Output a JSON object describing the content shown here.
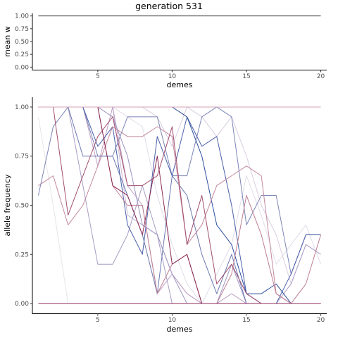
{
  "title": "generation 531",
  "chart_data": [
    {
      "type": "line",
      "xlabel": "demes",
      "ylabel": "mean w",
      "xlim": [
        0.6,
        20.4
      ],
      "ylim": [
        -0.05,
        1.05
      ],
      "xticks": [
        5,
        10,
        15,
        20
      ],
      "xtick_labels": [
        "5",
        "10",
        "15",
        "20"
      ],
      "yticks": [
        0,
        0.25,
        0.5,
        0.75,
        1
      ],
      "ytick_labels": [
        "0.00",
        "0.25",
        "0.50",
        "0.75",
        "1.00"
      ],
      "grid": false,
      "series": [
        {
          "color": "#333333",
          "x": [
            1,
            2,
            3,
            4,
            5,
            6,
            7,
            8,
            9,
            10,
            11,
            12,
            13,
            14,
            15,
            16,
            17,
            18,
            19,
            20
          ],
          "values": [
            1,
            1,
            1,
            1,
            1,
            1,
            1,
            1,
            1,
            1,
            1,
            1,
            1,
            1,
            1,
            1,
            1,
            1,
            1,
            1
          ]
        }
      ]
    },
    {
      "type": "line",
      "xlabel": "demes",
      "ylabel": "allele frequency",
      "xlim": [
        0.6,
        20.4
      ],
      "ylim": [
        -0.05,
        1.05
      ],
      "xticks": [
        5,
        10,
        15,
        20
      ],
      "xtick_labels": [
        "5",
        "10",
        "15",
        "20"
      ],
      "yticks": [
        0,
        0.25,
        0.5,
        0.75,
        1
      ],
      "ytick_labels": [
        "0.00",
        "0.25",
        "0.50",
        "0.75",
        "1.00"
      ],
      "grid": false,
      "series": [
        {
          "color": "#e6e6e6",
          "x": [
            1,
            2,
            3,
            4,
            5,
            6,
            7,
            8,
            9,
            10,
            11,
            12,
            13,
            14,
            15,
            16,
            17,
            18,
            19,
            20
          ],
          "values": [
            0.95,
            0.5,
            0,
            0,
            0,
            0,
            0,
            0,
            0,
            0,
            0,
            0,
            0,
            0,
            0,
            0,
            0,
            0,
            0,
            0
          ]
        },
        {
          "color": "#e0dce8",
          "x": [
            1,
            2,
            3,
            4,
            5,
            6,
            7,
            8,
            9,
            10,
            11,
            12,
            13,
            14,
            15,
            16,
            17,
            18,
            19,
            20
          ],
          "values": [
            1,
            1,
            1,
            1,
            1,
            1,
            0.95,
            0.9,
            0.55,
            0.3,
            0.1,
            0,
            0.15,
            0.3,
            0.65,
            0.45,
            0.2,
            0.3,
            0.4,
            0.2
          ]
        },
        {
          "color": "#d9cde0",
          "x": [
            1,
            2,
            3,
            4,
            5,
            6,
            7,
            8,
            9,
            10,
            11,
            12,
            13,
            14,
            15,
            16,
            17,
            18,
            19,
            20
          ],
          "values": [
            1,
            1,
            1,
            1,
            1,
            1,
            1,
            1,
            0.95,
            0.8,
            1,
            0.95,
            0.85,
            0.95,
            0.75,
            0.5,
            0.35,
            0.1,
            0.3,
            0.25
          ]
        },
        {
          "color": "#c8b8d3",
          "x": [
            1,
            2,
            3,
            4,
            5,
            6,
            7,
            8,
            9,
            10,
            11,
            12,
            13,
            14,
            15,
            16,
            17,
            18,
            19,
            20
          ],
          "values": [
            1,
            1,
            1,
            1,
            1,
            1,
            0.45,
            0.4,
            0.35,
            0.15,
            0.05,
            0,
            0,
            0,
            0,
            0,
            0,
            0,
            0,
            0
          ]
        },
        {
          "color": "#bea0c4",
          "x": [
            1,
            2,
            3,
            4,
            5,
            6,
            7,
            8,
            9,
            10,
            11,
            12,
            13,
            14,
            15,
            16,
            17,
            18,
            19,
            20
          ],
          "values": [
            1,
            1,
            1,
            1,
            0.7,
            1,
            0.6,
            0.5,
            0.05,
            0.15,
            0.05,
            0,
            0,
            0.05,
            0,
            0,
            0,
            0,
            0,
            0
          ]
        },
        {
          "color": "#a89cc4",
          "x": [
            1,
            2,
            3,
            4,
            5,
            6,
            7,
            8,
            9,
            10,
            11,
            12,
            13,
            14,
            15,
            16,
            17,
            18,
            19,
            20
          ],
          "values": [
            1,
            1,
            1,
            0.6,
            0.2,
            0.2,
            0.35,
            0.6,
            0.35,
            0,
            0,
            0,
            0,
            0,
            0,
            0,
            0,
            0.1,
            0.3,
            0.25
          ]
        },
        {
          "color": "#9c94c0",
          "x": [
            1,
            2,
            3,
            4,
            5,
            6,
            7,
            8,
            9,
            10,
            11,
            12,
            13,
            14,
            15,
            16,
            17,
            18,
            19,
            20
          ],
          "values": [
            1,
            1,
            1,
            1,
            1,
            0.95,
            0.75,
            0.4,
            0.35,
            0.15,
            0,
            0,
            0,
            0.2,
            0,
            0,
            0,
            0,
            0,
            0
          ]
        },
        {
          "color": "#7b85b5",
          "x": [
            1,
            2,
            3,
            4,
            5,
            6,
            7,
            8,
            9,
            10,
            11,
            12,
            13,
            14,
            15,
            16,
            17,
            18,
            19,
            20
          ],
          "values": [
            0.55,
            0.9,
            1,
            1,
            0.75,
            0.75,
            0.95,
            0.95,
            0.95,
            0.65,
            0.65,
            0.95,
            1,
            0.95,
            0.4,
            0.55,
            0.55,
            0.15,
            0.35,
            0.35
          ]
        },
        {
          "color": "#6b78b0",
          "x": [
            1,
            2,
            3,
            4,
            5,
            6,
            7,
            8,
            9,
            10,
            11,
            12,
            13,
            14,
            15,
            16,
            17,
            18,
            19,
            20
          ],
          "values": [
            1,
            1,
            1,
            0.75,
            0.75,
            0.75,
            0.55,
            0.35,
            0.05,
            0.65,
            0.55,
            0.25,
            0.05,
            0.25,
            0,
            0,
            0,
            0,
            0,
            0
          ]
        },
        {
          "color": "#4a5fa8",
          "x": [
            1,
            2,
            3,
            4,
            5,
            6,
            7,
            8,
            9,
            10,
            11,
            12,
            13,
            14,
            15,
            16,
            17,
            18,
            19,
            20
          ],
          "values": [
            1,
            1,
            1,
            1,
            0.8,
            0.9,
            0.4,
            0.25,
            0.85,
            0.65,
            0.95,
            0.8,
            0.85,
            0.5,
            0.05,
            0,
            0,
            0.15,
            0.35,
            0.35
          ]
        },
        {
          "color": "#2d4fa0",
          "x": [
            1,
            2,
            3,
            4,
            5,
            6,
            7,
            8,
            9,
            10,
            11,
            12,
            13,
            14,
            15,
            16,
            17,
            18,
            19,
            20
          ],
          "values": [
            1,
            1,
            1,
            1,
            1,
            1,
            1,
            1,
            1,
            1,
            0.95,
            0.75,
            0.4,
            0.3,
            0.05,
            0.05,
            0.1,
            0,
            0,
            0
          ]
        },
        {
          "color": "#c3889e",
          "x": [
            1,
            2,
            3,
            4,
            5,
            6,
            7,
            8,
            9,
            10,
            11,
            12,
            13,
            14,
            15,
            16,
            17,
            18,
            19,
            20
          ],
          "values": [
            0.6,
            0.65,
            0.4,
            0.5,
            0.7,
            0.9,
            0.85,
            0.85,
            0.9,
            0.85,
            0.3,
            0.4,
            0.6,
            0.65,
            0.7,
            0.65,
            0.05,
            0,
            0,
            0
          ]
        },
        {
          "color": "#bd7d94",
          "x": [
            1,
            2,
            3,
            4,
            5,
            6,
            7,
            8,
            9,
            10,
            11,
            12,
            13,
            14,
            15,
            16,
            17,
            18,
            19,
            20
          ],
          "values": [
            1,
            1,
            1,
            1,
            1,
            0.6,
            0.5,
            0.5,
            0.05,
            0.2,
            0.25,
            0,
            0,
            0.15,
            0.55,
            0.35,
            0.05,
            0,
            0.1,
            0.35
          ]
        },
        {
          "color": "#a14e6f",
          "x": [
            1,
            2,
            3,
            4,
            5,
            6,
            7,
            8,
            9,
            10,
            11,
            12,
            13,
            14,
            15,
            16,
            17,
            18,
            19,
            20
          ],
          "values": [
            1,
            1,
            0.45,
            0.65,
            0.85,
            0.95,
            0.6,
            0.6,
            0.65,
            0.9,
            0.3,
            0.55,
            0.1,
            0.2,
            0.05,
            0,
            0,
            0,
            0,
            0
          ]
        },
        {
          "color": "#8a2a52",
          "x": [
            1,
            2,
            3,
            4,
            5,
            6,
            7,
            8,
            9,
            10,
            11,
            12,
            13,
            14,
            15,
            16,
            17,
            18,
            19,
            20
          ],
          "values": [
            1,
            1,
            1,
            1,
            1,
            0.6,
            0.55,
            0.35,
            0.75,
            0.2,
            0.25,
            0,
            0,
            0,
            0,
            0,
            0,
            0,
            0,
            0
          ]
        },
        {
          "color": "#d9a3b8",
          "x": [
            1,
            2,
            3,
            4,
            5,
            6,
            7,
            8,
            9,
            10,
            11,
            12,
            13,
            14,
            15,
            16,
            17,
            18,
            19,
            20
          ],
          "values": [
            1,
            1,
            1,
            1,
            1,
            1,
            1,
            1,
            1,
            1,
            1,
            1,
            1,
            1,
            1,
            1,
            1,
            1,
            1,
            1
          ]
        },
        {
          "color": "#2e3f8c",
          "x": [
            1,
            2,
            3,
            4,
            5,
            6,
            7,
            8,
            9,
            10,
            11,
            12,
            13,
            14,
            15,
            16,
            17,
            18,
            19,
            20
          ],
          "values": [
            0,
            0,
            0,
            0,
            0,
            0,
            0,
            0,
            0,
            0,
            0,
            0,
            0,
            0,
            0,
            0,
            0,
            0,
            0,
            0
          ]
        },
        {
          "color": "#8c2a5a",
          "x": [
            1,
            2,
            3,
            4,
            5,
            6,
            7,
            8,
            9,
            10,
            11,
            12,
            13,
            14,
            15,
            16,
            17,
            18,
            19,
            20
          ],
          "values": [
            0,
            0,
            0,
            0,
            0,
            0,
            0,
            0,
            0,
            0,
            0,
            0,
            0,
            0,
            0,
            0,
            0,
            0,
            0,
            0
          ]
        }
      ]
    }
  ]
}
